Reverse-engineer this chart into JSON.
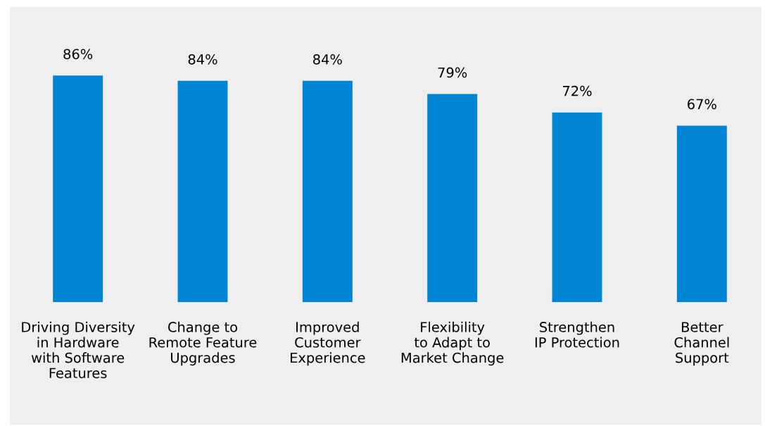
{
  "chart_data": {
    "type": "bar",
    "categories": [
      "Driving Diversity\nin Hardware\nwith Software\nFeatures",
      "Change to\nRemote Feature\nUpgrades",
      "Improved\nCustomer\nExperience",
      "Flexibility\nto Adapt to\nMarket Change",
      "Strengthen\nIP Protection",
      "Better\nChannel\nSupport"
    ],
    "values": [
      86,
      84,
      84,
      79,
      72,
      67
    ],
    "value_labels": [
      "86%",
      "84%",
      "84%",
      "79%",
      "72%",
      "67%"
    ],
    "color": "#0085d5",
    "tick_labels": "x",
    "grid": false,
    "legend": false
  }
}
